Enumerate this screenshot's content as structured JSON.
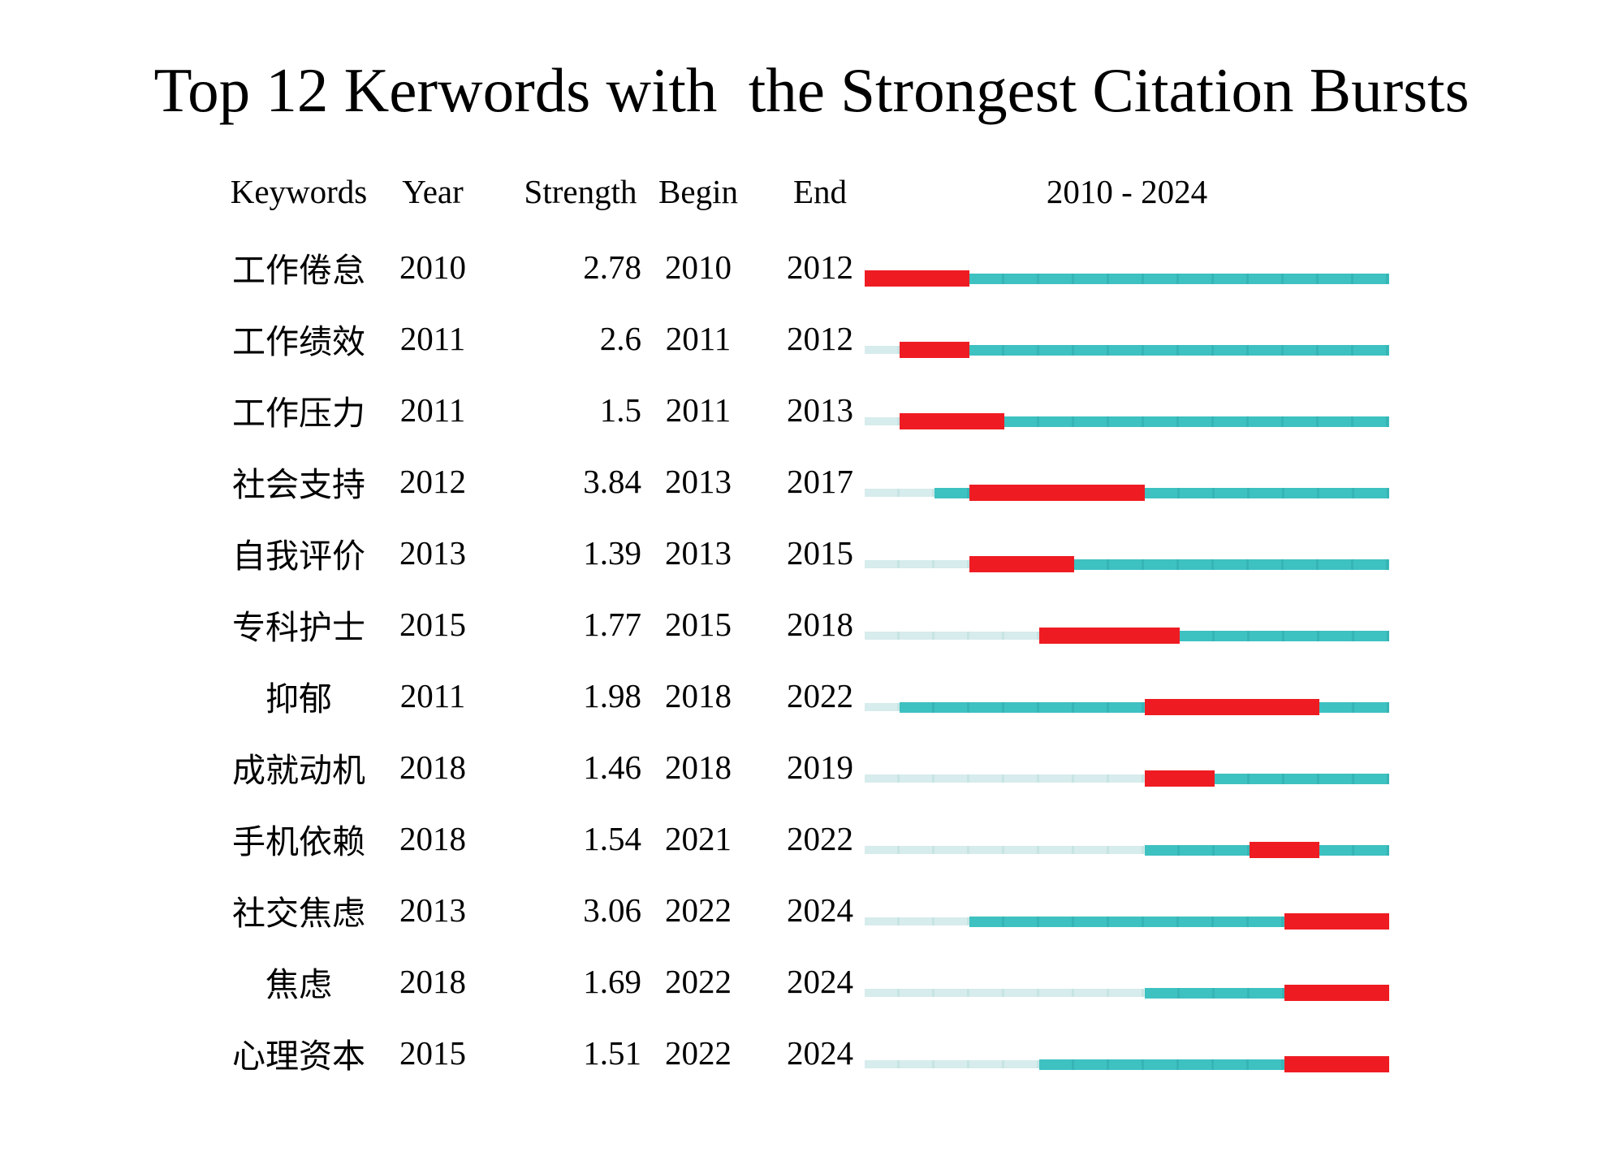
{
  "title": "Top 12 Kerwords with  the Strongest Citation Bursts",
  "header": {
    "keywords": "Keywords",
    "year": "Year",
    "strength": "Strength",
    "begin": "Begin",
    "end": "End",
    "range": "2010 - 2024"
  },
  "colors": {
    "burst": "#ee1c22",
    "active": "#3ec1c1",
    "inactive": "#d7ecec",
    "text": "#000000",
    "background": "#ffffff"
  },
  "chart_data": {
    "type": "bar",
    "subtype": "citation-burst-timeline",
    "title": "Top 12 Kerwords with  the Strongest Citation Bursts",
    "x_range": [
      2010,
      2024
    ],
    "range_label": "2010 - 2024",
    "columns": [
      "Keywords",
      "Year",
      "Strength",
      "Begin",
      "End"
    ],
    "grid": false,
    "legend": false,
    "rows": [
      {
        "keyword": "工作倦怠",
        "year": 2010,
        "strength": "2.78",
        "begin": 2010,
        "end": 2012
      },
      {
        "keyword": "工作绩效",
        "year": 2011,
        "strength": "2.6",
        "begin": 2011,
        "end": 2012
      },
      {
        "keyword": "工作压力",
        "year": 2011,
        "strength": "1.5",
        "begin": 2011,
        "end": 2013
      },
      {
        "keyword": "社会支持",
        "year": 2012,
        "strength": "3.84",
        "begin": 2013,
        "end": 2017
      },
      {
        "keyword": "自我评价",
        "year": 2013,
        "strength": "1.39",
        "begin": 2013,
        "end": 2015
      },
      {
        "keyword": "专科护士",
        "year": 2015,
        "strength": "1.77",
        "begin": 2015,
        "end": 2018
      },
      {
        "keyword": "抑郁",
        "year": 2011,
        "strength": "1.98",
        "begin": 2018,
        "end": 2022
      },
      {
        "keyword": "成就动机",
        "year": 2018,
        "strength": "1.46",
        "begin": 2018,
        "end": 2019
      },
      {
        "keyword": "手机依赖",
        "year": 2018,
        "strength": "1.54",
        "begin": 2021,
        "end": 2022
      },
      {
        "keyword": "社交焦虑",
        "year": 2013,
        "strength": "3.06",
        "begin": 2022,
        "end": 2024
      },
      {
        "keyword": "焦虑",
        "year": 2018,
        "strength": "1.69",
        "begin": 2022,
        "end": 2024
      },
      {
        "keyword": "心理资本",
        "year": 2015,
        "strength": "1.51",
        "begin": 2022,
        "end": 2024
      }
    ]
  }
}
